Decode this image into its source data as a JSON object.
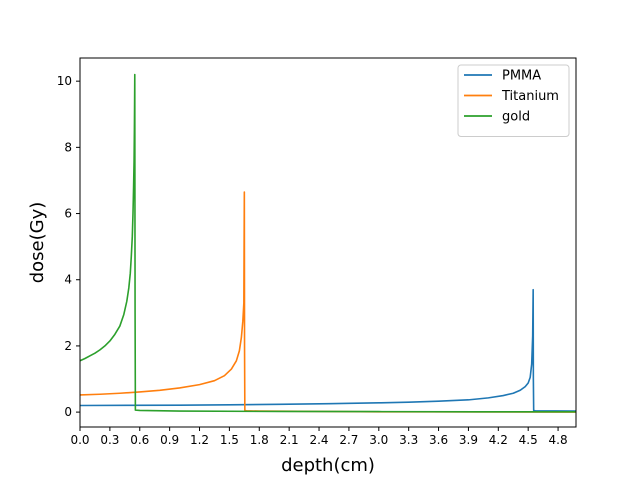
{
  "chart_data": {
    "type": "line",
    "title": "",
    "xlabel": "depth(cm)",
    "ylabel": "dose(Gy)",
    "xlim": [
      0.0,
      4.98
    ],
    "ylim": [
      -0.45,
      10.7
    ],
    "xticks": [
      0.0,
      0.3,
      0.6,
      0.9,
      1.2,
      1.5,
      1.8,
      2.1,
      2.4,
      2.7,
      3.0,
      3.3,
      3.6,
      3.9,
      4.2,
      4.5,
      4.8
    ],
    "xtick_labels": [
      "0.0",
      "0.3",
      "0.6",
      "0.9",
      "1.2",
      "1.5",
      "1.8",
      "2.1",
      "2.4",
      "2.7",
      "3.0",
      "3.3",
      "3.6",
      "3.9",
      "4.2",
      "4.5",
      "4.8"
    ],
    "yticks": [
      0,
      2,
      4,
      6,
      8,
      10
    ],
    "ytick_labels": [
      "0",
      "2",
      "4",
      "6",
      "8",
      "10"
    ],
    "grid": false,
    "legend": "top-right",
    "series": [
      {
        "name": "PMMA",
        "color": "#1f77b4",
        "x": [
          0.0,
          0.5,
          1.0,
          1.5,
          2.0,
          2.5,
          3.0,
          3.3,
          3.6,
          3.9,
          4.1,
          4.25,
          4.35,
          4.42,
          4.47,
          4.5,
          4.52,
          4.535,
          4.545,
          4.55,
          4.552,
          4.555,
          4.57,
          4.98
        ],
        "y": [
          0.2,
          0.205,
          0.21,
          0.22,
          0.235,
          0.255,
          0.28,
          0.3,
          0.33,
          0.37,
          0.43,
          0.5,
          0.57,
          0.66,
          0.77,
          0.88,
          1.05,
          1.45,
          2.3,
          3.7,
          1.0,
          0.05,
          0.04,
          0.03
        ]
      },
      {
        "name": "Titanium",
        "color": "#ff7f0e",
        "x": [
          0.0,
          0.2,
          0.4,
          0.6,
          0.8,
          1.0,
          1.2,
          1.35,
          1.45,
          1.52,
          1.57,
          1.6,
          1.62,
          1.635,
          1.645,
          1.65,
          1.652,
          1.655,
          1.67,
          1.8,
          3.0,
          4.98
        ],
        "y": [
          0.52,
          0.54,
          0.57,
          0.61,
          0.66,
          0.73,
          0.83,
          0.95,
          1.1,
          1.3,
          1.55,
          1.85,
          2.25,
          2.75,
          3.3,
          6.65,
          2.0,
          0.05,
          0.04,
          0.03,
          0.01,
          0.0
        ]
      },
      {
        "name": "gold",
        "color": "#2ca02c",
        "x": [
          0.0,
          0.05,
          0.1,
          0.15,
          0.2,
          0.25,
          0.3,
          0.35,
          0.4,
          0.44,
          0.47,
          0.49,
          0.505,
          0.515,
          0.525,
          0.532,
          0.538,
          0.543,
          0.546,
          0.548,
          0.55,
          0.553,
          0.556,
          0.6,
          1.0,
          2.0,
          3.0,
          4.0,
          4.98
        ],
        "y": [
          1.55,
          1.62,
          1.7,
          1.78,
          1.88,
          2.0,
          2.15,
          2.35,
          2.6,
          2.95,
          3.35,
          3.75,
          4.2,
          4.7,
          5.3,
          6.0,
          6.8,
          7.6,
          8.5,
          9.3,
          10.2,
          3.0,
          0.06,
          0.05,
          0.03,
          0.02,
          0.015,
          0.01,
          0.01
        ]
      }
    ]
  }
}
